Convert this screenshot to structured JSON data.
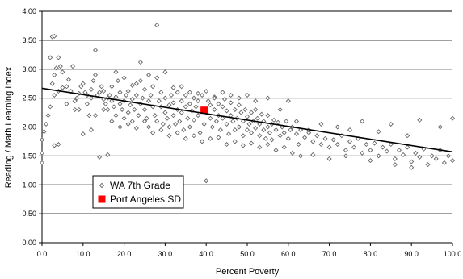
{
  "chart_data": {
    "type": "scatter",
    "xlabel": "Percent Poverty",
    "ylabel": "Reading / Math Learning Index",
    "xlim": [
      0,
      100
    ],
    "ylim": [
      0,
      4
    ],
    "x_ticks": [
      "0.0",
      "10.0",
      "20.0",
      "30.0",
      "40.0",
      "50.0",
      "60.0",
      "70.0",
      "80.0",
      "90.0",
      "100.0"
    ],
    "y_ticks": [
      "0.00",
      "0.50",
      "1.00",
      "1.50",
      "2.00",
      "2.50",
      "3.00",
      "3.50",
      "4.00"
    ],
    "grid": "horizontal",
    "legend_position": "lower-left",
    "trendline": {
      "x": [
        0,
        100
      ],
      "y": [
        2.67,
        1.57
      ],
      "color": "#000000"
    },
    "series": [
      {
        "name": "WA 7th Grade",
        "marker": "diamond-hollow",
        "color": "#666666",
        "points": [
          [
            0,
            1.38
          ],
          [
            0,
            1.55
          ],
          [
            0,
            1.78
          ],
          [
            0.5,
            1.92
          ],
          [
            1,
            2.05
          ],
          [
            1.5,
            2.2
          ],
          [
            2,
            2.35
          ],
          [
            2,
            3.2
          ],
          [
            2.5,
            3.56
          ],
          [
            3,
            3.57
          ],
          [
            2.5,
            2.75
          ],
          [
            3,
            2.9
          ],
          [
            3.5,
            3.02
          ],
          [
            4,
            3.2
          ],
          [
            4.5,
            3.05
          ],
          [
            5,
            2.95
          ],
          [
            3,
            2.55
          ],
          [
            4,
            2.62
          ],
          [
            5,
            2.68
          ],
          [
            6,
            2.7
          ],
          [
            6.5,
            2.82
          ],
          [
            7,
            2.62
          ],
          [
            7.5,
            3.05
          ],
          [
            8,
            2.45
          ],
          [
            8.5,
            2.5
          ],
          [
            9,
            2.58
          ],
          [
            9.5,
            2.7
          ],
          [
            10,
            2.75
          ],
          [
            10.5,
            2.6
          ],
          [
            11,
            2.55
          ],
          [
            11.5,
            2.2
          ],
          [
            12,
            2.5
          ],
          [
            12,
            2.65
          ],
          [
            12.5,
            2.8
          ],
          [
            13,
            2.9
          ],
          [
            13,
            3.33
          ],
          [
            13.5,
            2.55
          ],
          [
            14,
            2.6
          ],
          [
            14.5,
            2.7
          ],
          [
            15,
            2.48
          ],
          [
            15,
            2.62
          ],
          [
            15.5,
            2.4
          ],
          [
            16,
            2.3
          ],
          [
            16,
            2.5
          ],
          [
            16.5,
            2.55
          ],
          [
            17,
            2.45
          ],
          [
            17,
            2.7
          ],
          [
            17.5,
            2.35
          ],
          [
            18,
            2.2
          ],
          [
            18,
            2.52
          ],
          [
            18.5,
            2.8
          ],
          [
            19,
            2.4
          ],
          [
            19,
            2.6
          ],
          [
            19.5,
            2.3
          ],
          [
            20,
            2.15
          ],
          [
            20,
            2.45
          ],
          [
            20.5,
            2.55
          ],
          [
            21,
            2.25
          ],
          [
            21,
            2.62
          ],
          [
            21.5,
            2.38
          ],
          [
            22,
            2.48
          ],
          [
            22,
            2.1
          ],
          [
            22.5,
            2.3
          ],
          [
            23,
            2.55
          ],
          [
            23,
            2.75
          ],
          [
            23.5,
            2.2
          ],
          [
            24,
            2.4
          ],
          [
            24,
            3.12
          ],
          [
            24.5,
            2.5
          ],
          [
            25,
            2.3
          ],
          [
            25,
            2.65
          ],
          [
            25.5,
            2.15
          ],
          [
            26,
            2.45
          ],
          [
            26,
            2.0
          ],
          [
            26.5,
            2.55
          ],
          [
            27,
            2.35
          ],
          [
            27,
            2.7
          ],
          [
            27.5,
            2.2
          ],
          [
            28,
            3.76
          ],
          [
            28,
            2.1
          ],
          [
            28.5,
            2.45
          ],
          [
            29,
            2.35
          ],
          [
            29,
            2.6
          ],
          [
            29.5,
            2.05
          ],
          [
            30,
            2.25
          ],
          [
            30,
            2.5
          ],
          [
            30.5,
            2.15
          ],
          [
            31,
            2.38
          ],
          [
            31,
            2.0
          ],
          [
            31.5,
            2.55
          ],
          [
            32,
            2.2
          ],
          [
            32,
            2.42
          ],
          [
            32.5,
            2.05
          ],
          [
            33,
            2.3
          ],
          [
            33,
            2.6
          ],
          [
            33.5,
            2.1
          ],
          [
            34,
            2.45
          ],
          [
            34,
            2.25
          ],
          [
            34.5,
            1.95
          ],
          [
            35,
            2.35
          ],
          [
            35,
            2.55
          ],
          [
            35.5,
            2.15
          ],
          [
            36,
            2.4
          ],
          [
            36,
            2.0
          ],
          [
            36.5,
            2.28
          ],
          [
            37,
            2.5
          ],
          [
            37,
            2.12
          ],
          [
            37.5,
            2.35
          ],
          [
            38,
            2.2
          ],
          [
            38,
            2.45
          ],
          [
            38.5,
            1.9
          ],
          [
            39,
            2.3
          ],
          [
            39,
            2.55
          ],
          [
            39.5,
            2.05
          ],
          [
            40,
            1.07
          ],
          [
            40,
            2.25
          ],
          [
            40.5,
            2.45
          ],
          [
            41,
            2.15
          ],
          [
            41,
            2.38
          ],
          [
            41.5,
            2.0
          ],
          [
            42,
            2.3
          ],
          [
            42,
            2.52
          ],
          [
            42.5,
            2.1
          ],
          [
            43,
            2.4
          ],
          [
            43,
            2.2
          ],
          [
            43.5,
            1.95
          ],
          [
            44,
            2.35
          ],
          [
            44,
            2.15
          ],
          [
            44.5,
            2.48
          ],
          [
            45,
            2.05
          ],
          [
            45,
            2.28
          ],
          [
            45.5,
            1.88
          ],
          [
            46,
            2.2
          ],
          [
            46,
            2.42
          ],
          [
            46.5,
            2.1
          ],
          [
            47,
            2.3
          ],
          [
            47,
            1.95
          ],
          [
            47.5,
            2.15
          ],
          [
            48,
            2.38
          ],
          [
            48,
            2.0
          ],
          [
            48.5,
            2.25
          ],
          [
            49,
            1.85
          ],
          [
            49,
            2.1
          ],
          [
            49.5,
            2.3
          ],
          [
            50,
            1.95
          ],
          [
            50,
            2.18
          ],
          [
            50.5,
            2.05
          ],
          [
            51,
            2.25
          ],
          [
            51,
            1.9
          ],
          [
            51.5,
            2.1
          ],
          [
            52,
            2.3
          ],
          [
            52,
            1.98
          ],
          [
            52.5,
            2.15
          ],
          [
            53,
            1.85
          ],
          [
            53,
            2.05
          ],
          [
            53.5,
            2.22
          ],
          [
            54,
            1.95
          ],
          [
            54,
            2.1
          ],
          [
            54.5,
            1.8
          ],
          [
            55,
            2.0
          ],
          [
            55,
            2.2
          ],
          [
            55.5,
            1.9
          ],
          [
            56,
            2.05
          ],
          [
            56,
            1.78
          ],
          [
            56.5,
            2.12
          ],
          [
            57,
            1.95
          ],
          [
            57.5,
            2.08
          ],
          [
            58,
            1.85
          ],
          [
            58.5,
            2.0
          ],
          [
            59,
            1.9
          ],
          [
            59.5,
            2.1
          ],
          [
            60,
            1.8
          ],
          [
            60.5,
            1.95
          ],
          [
            61,
            2.0
          ],
          [
            62,
            1.88
          ],
          [
            62.5,
            1.7
          ],
          [
            63,
            1.95
          ],
          [
            64,
            1.82
          ],
          [
            65,
            1.9
          ],
          [
            66,
            1.75
          ],
          [
            67,
            1.85
          ],
          [
            68,
            1.7
          ],
          [
            69,
            1.8
          ],
          [
            70,
            1.65
          ],
          [
            71,
            1.78
          ],
          [
            72,
            1.7
          ],
          [
            73,
            1.85
          ],
          [
            74,
            1.6
          ],
          [
            75,
            1.75
          ],
          [
            76,
            1.65
          ],
          [
            77,
            1.8
          ],
          [
            78,
            1.55
          ],
          [
            79,
            1.7
          ],
          [
            80,
            1.6
          ],
          [
            81,
            1.72
          ],
          [
            82,
            1.5
          ],
          [
            83,
            1.65
          ],
          [
            84,
            1.58
          ],
          [
            85,
            1.7
          ],
          [
            86,
            1.45
          ],
          [
            87,
            1.6
          ],
          [
            88,
            1.52
          ],
          [
            89,
            1.65
          ],
          [
            90,
            1.4
          ],
          [
            91,
            1.55
          ],
          [
            92,
            1.48
          ],
          [
            93,
            1.62
          ],
          [
            94,
            1.35
          ],
          [
            95,
            1.5
          ],
          [
            96,
            1.45
          ],
          [
            97,
            1.6
          ],
          [
            98,
            1.38
          ],
          [
            99,
            1.5
          ],
          [
            100,
            1.42
          ],
          [
            100,
            2.15
          ],
          [
            97,
            2.0
          ],
          [
            92,
            2.12
          ],
          [
            89,
            1.85
          ],
          [
            85,
            2.05
          ],
          [
            82,
            1.92
          ],
          [
            78,
            2.1
          ],
          [
            75,
            1.95
          ],
          [
            72,
            2.0
          ],
          [
            68,
            2.05
          ],
          [
            65,
            1.95
          ],
          [
            62,
            2.1
          ],
          [
            60,
            2.45
          ],
          [
            58,
            2.3
          ],
          [
            55,
            2.5
          ],
          [
            52,
            2.45
          ],
          [
            50,
            2.55
          ],
          [
            48,
            2.5
          ],
          [
            46,
            2.55
          ],
          [
            44,
            2.6
          ],
          [
            42,
            2.5
          ],
          [
            40,
            2.62
          ],
          [
            38,
            2.58
          ],
          [
            36,
            2.6
          ],
          [
            34,
            2.7
          ],
          [
            32,
            2.68
          ],
          [
            30,
            2.95
          ],
          [
            28,
            2.85
          ],
          [
            26,
            2.9
          ],
          [
            24,
            2.8
          ],
          [
            22,
            2.72
          ],
          [
            20,
            2.85
          ],
          [
            18,
            2.95
          ],
          [
            16,
            1.52
          ],
          [
            14,
            1.48
          ],
          [
            12,
            1.95
          ],
          [
            10,
            1.88
          ],
          [
            8,
            2.3
          ],
          [
            6,
            2.4
          ],
          [
            4,
            1.7
          ],
          [
            3,
            1.68
          ],
          [
            9,
            2.3
          ],
          [
            11,
            2.4
          ],
          [
            13,
            2.2
          ],
          [
            15,
            2.3
          ],
          [
            17,
            2.1
          ],
          [
            19,
            2.0
          ],
          [
            21,
            2.05
          ],
          [
            23,
            1.98
          ],
          [
            25,
            2.1
          ],
          [
            27,
            1.9
          ],
          [
            29,
            1.95
          ],
          [
            31,
            1.85
          ],
          [
            33,
            1.9
          ],
          [
            35,
            1.8
          ],
          [
            37,
            1.85
          ],
          [
            39,
            1.75
          ],
          [
            41,
            1.8
          ],
          [
            43,
            1.82
          ],
          [
            45,
            1.7
          ],
          [
            47,
            1.75
          ],
          [
            49,
            1.68
          ],
          [
            51,
            1.72
          ],
          [
            53,
            1.65
          ],
          [
            55,
            1.7
          ],
          [
            57,
            1.6
          ],
          [
            59,
            1.65
          ],
          [
            61,
            1.55
          ],
          [
            63,
            1.5
          ],
          [
            66,
            1.52
          ],
          [
            70,
            1.45
          ],
          [
            74,
            1.5
          ],
          [
            80,
            1.42
          ],
          [
            86,
            1.35
          ],
          [
            90,
            1.3
          ]
        ]
      },
      {
        "name": "Port Angeles SD",
        "marker": "square-filled",
        "color": "#ff0000",
        "points": [
          [
            39.5,
            2.29
          ]
        ]
      }
    ]
  }
}
